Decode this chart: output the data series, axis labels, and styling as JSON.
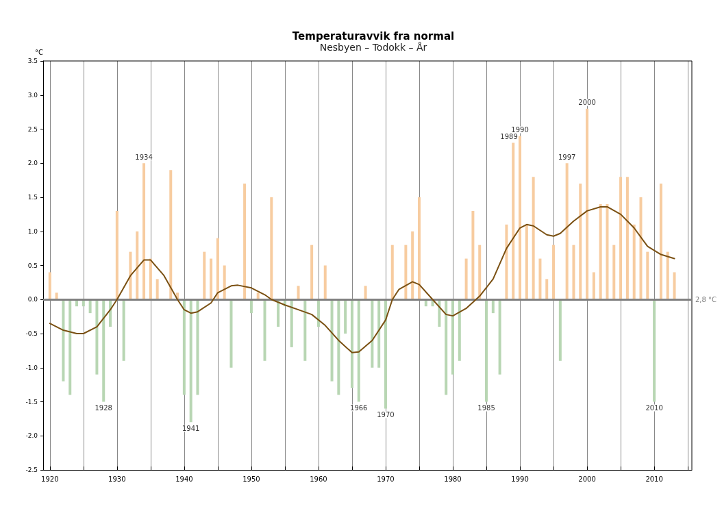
{
  "chart_data": {
    "type": "bar",
    "title": "Temperaturavvik fra normal",
    "subtitle": "Nesbyen – Todokk – År",
    "ylabel": "°C",
    "x": [
      1920,
      1921,
      1922,
      1923,
      1924,
      1925,
      1926,
      1927,
      1928,
      1929,
      1930,
      1931,
      1932,
      1933,
      1934,
      1935,
      1936,
      1937,
      1938,
      1939,
      1940,
      1941,
      1942,
      1943,
      1944,
      1945,
      1946,
      1947,
      1948,
      1949,
      1950,
      1951,
      1952,
      1953,
      1954,
      1955,
      1956,
      1957,
      1958,
      1959,
      1960,
      1961,
      1962,
      1963,
      1964,
      1965,
      1966,
      1967,
      1968,
      1969,
      1970,
      1971,
      1972,
      1973,
      1974,
      1975,
      1976,
      1977,
      1978,
      1979,
      1980,
      1981,
      1982,
      1983,
      1984,
      1985,
      1986,
      1987,
      1988,
      1989,
      1990,
      1991,
      1992,
      1993,
      1994,
      1995,
      1996,
      1997,
      1998,
      1999,
      2000,
      2001,
      2002,
      2003,
      2004,
      2005,
      2006,
      2007,
      2008,
      2009,
      2010,
      2011,
      2012,
      2013
    ],
    "series": [
      {
        "values": [
          0.4,
          0.1,
          -1.2,
          -1.4,
          -0.1,
          -0.1,
          -0.2,
          -1.1,
          -1.5,
          -0.4,
          1.3,
          -0.9,
          0.7,
          1.0,
          2.0,
          0.6,
          0.3,
          0.0,
          1.9,
          0.1,
          -1.4,
          -1.8,
          -1.4,
          0.7,
          0.6,
          0.9,
          0.5,
          -1.0,
          0.0,
          1.7,
          -0.2,
          0.1,
          -0.9,
          1.5,
          -0.4,
          -0.1,
          -0.7,
          0.2,
          -0.9,
          0.8,
          -0.4,
          0.5,
          -1.2,
          -1.4,
          -0.5,
          -1.3,
          -1.5,
          0.2,
          -1.0,
          -1.0,
          -1.6,
          0.8,
          0.0,
          0.8,
          1.0,
          1.5,
          -0.1,
          -0.1,
          -0.4,
          -1.4,
          -1.1,
          -0.9,
          0.6,
          1.3,
          0.8,
          -1.5,
          -0.2,
          -1.1,
          1.1,
          2.3,
          2.4,
          1.1,
          1.8,
          0.6,
          0.3,
          0.8,
          -0.9,
          2.0,
          0.8,
          1.7,
          2.8,
          0.4,
          1.4,
          1.4,
          0.8,
          1.8,
          1.8,
          1.1,
          1.5,
          0.7,
          -1.5,
          1.7,
          0.7,
          0.4
        ],
        "colors": [
          "#f7cca0",
          "#f7cca0",
          "#b8d6b3",
          "#b8d6b3",
          "#b8d6b3",
          "#b8d6b3",
          "#b8d6b3",
          "#b8d6b3",
          "#b8d6b3",
          "#b8d6b3",
          "#f7cca0",
          "#b8d6b3",
          "#f7cca0",
          "#f7cca0",
          "#f7cca0",
          "#f7cca0",
          "#f7cca0",
          "#f7cca0",
          "#f7cca0",
          "#f7cca0",
          "#b8d6b3",
          "#b8d6b3",
          "#b8d6b3",
          "#f7cca0",
          "#f7cca0",
          "#f7cca0",
          "#f7cca0",
          "#b8d6b3",
          "#f7cca0",
          "#f7cca0",
          "#b8d6b3",
          "#f7cca0",
          "#b8d6b3",
          "#f7cca0",
          "#b8d6b3",
          "#b8d6b3",
          "#b8d6b3",
          "#f7cca0",
          "#b8d6b3",
          "#f7cca0",
          "#b8d6b3",
          "#f7cca0",
          "#b8d6b3",
          "#b8d6b3",
          "#b8d6b3",
          "#b8d6b3",
          "#b8d6b3",
          "#f7cca0",
          "#b8d6b3",
          "#b8d6b3",
          "#b8d6b3",
          "#f7cca0",
          "#f7cca0",
          "#f7cca0",
          "#f7cca0",
          "#f7cca0",
          "#b8d6b3",
          "#b8d6b3",
          "#b8d6b3",
          "#b8d6b3",
          "#b8d6b3",
          "#b8d6b3",
          "#f7cca0",
          "#f7cca0",
          "#f7cca0",
          "#b8d6b3",
          "#b8d6b3",
          "#b8d6b3",
          "#f7cca0",
          "#f7cca0",
          "#f7cca0",
          "#f7cca0",
          "#f7cca0",
          "#f7cca0",
          "#f7cca0",
          "#f7cca0",
          "#b8d6b3",
          "#f7cca0",
          "#f7cca0",
          "#f7cca0",
          "#f7cca0",
          "#f7cca0",
          "#f7cca0",
          "#f7cca0",
          "#f7cca0",
          "#f7cca0",
          "#f7cca0",
          "#f7cca0",
          "#f7cca0",
          "#f7cca0",
          "#b8d6b3",
          "#f7cca0",
          "#f7cca0",
          "#f7cca0"
        ]
      },
      {
        "type": "line",
        "color": "#7a5012",
        "x": [
          1920,
          1922,
          1924,
          1925,
          1927,
          1929,
          1930,
          1932,
          1934,
          1935,
          1937,
          1939,
          1940,
          1941,
          1942,
          1944,
          1945,
          1947,
          1948,
          1950,
          1952,
          1953,
          1955,
          1957,
          1959,
          1961,
          1963,
          1965,
          1966,
          1968,
          1970,
          1971,
          1972,
          1974,
          1975,
          1977,
          1979,
          1980,
          1982,
          1984,
          1986,
          1988,
          1990,
          1991,
          1992,
          1994,
          1995,
          1996,
          1998,
          2000,
          2002,
          2003,
          2005,
          2007,
          2009,
          2011,
          2013
        ],
        "values": [
          -0.35,
          -0.45,
          -0.5,
          -0.5,
          -0.4,
          -0.15,
          0.0,
          0.35,
          0.58,
          0.58,
          0.35,
          0.0,
          -0.15,
          -0.2,
          -0.18,
          -0.05,
          0.1,
          0.2,
          0.21,
          0.17,
          0.07,
          0.0,
          -0.08,
          -0.15,
          -0.22,
          -0.38,
          -0.6,
          -0.78,
          -0.77,
          -0.6,
          -0.3,
          0.0,
          0.15,
          0.26,
          0.22,
          0.0,
          -0.22,
          -0.24,
          -0.13,
          0.05,
          0.3,
          0.75,
          1.05,
          1.1,
          1.08,
          0.95,
          0.93,
          0.97,
          1.15,
          1.3,
          1.36,
          1.36,
          1.25,
          1.05,
          0.78,
          0.66,
          0.6
        ]
      }
    ],
    "xlim": [
      1919,
      2015.6
    ],
    "xticks": [
      1920,
      {
        "value": 1925,
        "label": null
      },
      1930,
      {
        "value": 1935,
        "label": null
      },
      1940,
      {
        "value": 1945,
        "label": null
      },
      1950,
      {
        "value": 1955,
        "label": null
      },
      1960,
      {
        "value": 1965,
        "label": null
      },
      1970,
      {
        "value": 1975,
        "label": null
      },
      1980,
      {
        "value": 1985,
        "label": null
      },
      1990,
      {
        "value": 1995,
        "label": null
      },
      2000,
      {
        "value": 2005,
        "label": null
      },
      2010,
      {
        "value": 2015,
        "label": null
      }
    ],
    "ylim": [
      -2.5,
      3.5
    ],
    "yticks": [
      {
        "value": -2.5,
        "label": "-2.5"
      },
      {
        "value": -2,
        "label": "-2.0"
      },
      {
        "value": -1.5,
        "label": "-1.5"
      },
      {
        "value": -1,
        "label": "-1.0"
      },
      {
        "value": -0.5,
        "label": "-0.5"
      },
      {
        "value": 0,
        "label": "0.0"
      },
      {
        "value": 0.5,
        "label": "0.5"
      },
      {
        "value": 1,
        "label": "1.0"
      },
      {
        "value": 1.5,
        "label": "1.5"
      },
      {
        "value": 2,
        "label": "2.0"
      },
      {
        "value": 2.5,
        "label": "2.5"
      },
      {
        "value": 3,
        "label": "3.0"
      },
      {
        "value": 3.5,
        "label": "3.5"
      }
    ],
    "grid": "x",
    "ref_lines": [
      {
        "axis": "y",
        "value": 0,
        "label": "2,8 °C",
        "color": "#808080"
      }
    ],
    "annotations": [
      {
        "text": "1928",
        "x": 1928,
        "y": -1.5
      },
      {
        "text": "1934",
        "x": 1934,
        "y": 2.0
      },
      {
        "text": "1941",
        "x": 1941,
        "y": -1.8
      },
      {
        "text": "1966",
        "x": 1966,
        "y": -1.5
      },
      {
        "text": "1970",
        "x": 1970,
        "y": -1.6
      },
      {
        "text": "1985",
        "x": 1985,
        "y": -1.5
      },
      {
        "text": "1989",
        "x": 1989,
        "y": 2.3
      },
      {
        "text": "1990",
        "x": 1990,
        "y": 2.4
      },
      {
        "text": "1997",
        "x": 1997,
        "y": 2.0
      },
      {
        "text": "2000",
        "x": 2000,
        "y": 2.8
      },
      {
        "text": "2010",
        "x": 2010,
        "y": -1.5
      }
    ]
  }
}
